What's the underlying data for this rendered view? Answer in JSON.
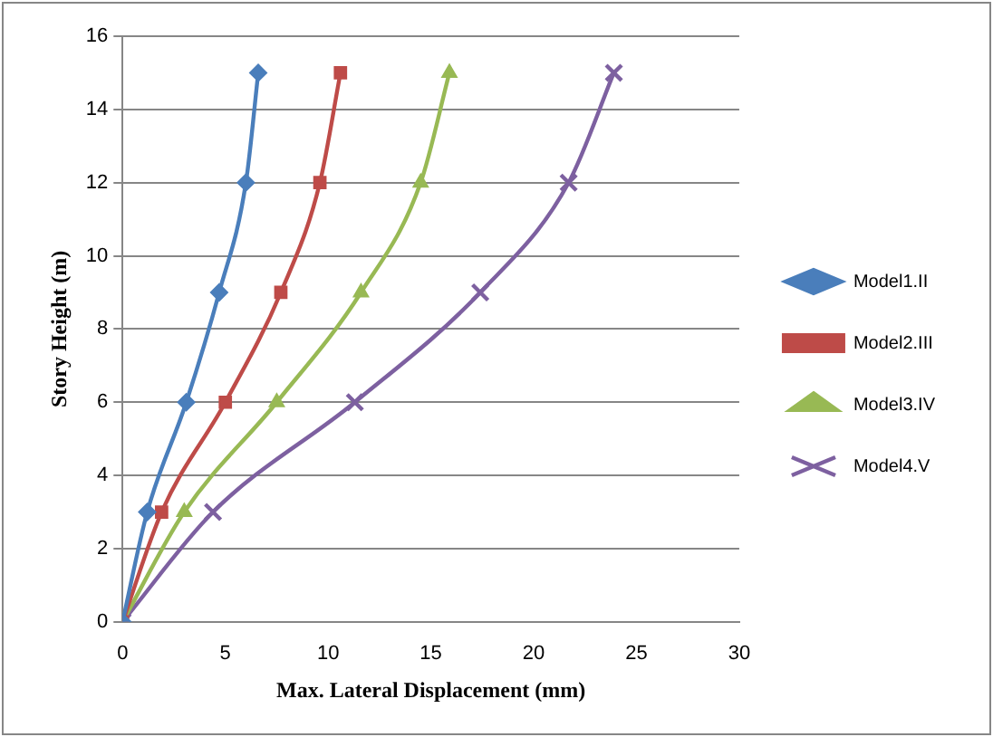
{
  "chart_data": {
    "type": "line",
    "xlabel": "Max. Lateral Displacement (mm)",
    "ylabel": "Story Height (m)",
    "xlim": [
      0,
      30
    ],
    "xticks": [
      0,
      5,
      10,
      15,
      20,
      25,
      30
    ],
    "ylim": [
      0,
      16
    ],
    "yticks": [
      0,
      2,
      4,
      6,
      8,
      10,
      12,
      14,
      16
    ],
    "grid": "y",
    "legend": "right",
    "line_style": "solid",
    "series": [
      {
        "name": "Model1.II",
        "color": "#4a7ebb",
        "marker": "diamond",
        "x": [
          0,
          1.2,
          3.1,
          4.7,
          6.0,
          6.6
        ],
        "values": [
          0,
          3,
          6,
          9,
          12,
          15
        ]
      },
      {
        "name": "Model2.III",
        "color": "#be4b48",
        "marker": "square",
        "x": [
          0,
          1.9,
          5.0,
          7.7,
          9.6,
          10.6
        ],
        "values": [
          0,
          3,
          6,
          9,
          12,
          15
        ]
      },
      {
        "name": "Model3.IV",
        "color": "#98b954",
        "marker": "triangle",
        "x": [
          0,
          3.0,
          7.5,
          11.6,
          14.5,
          15.9
        ],
        "values": [
          0,
          3,
          6,
          9,
          12,
          15
        ]
      },
      {
        "name": "Model4.V",
        "color": "#7d60a0",
        "marker": "cross",
        "x": [
          0,
          4.4,
          11.3,
          17.4,
          21.7,
          23.9
        ],
        "values": [
          0,
          3,
          6,
          9,
          12,
          15
        ]
      }
    ]
  }
}
